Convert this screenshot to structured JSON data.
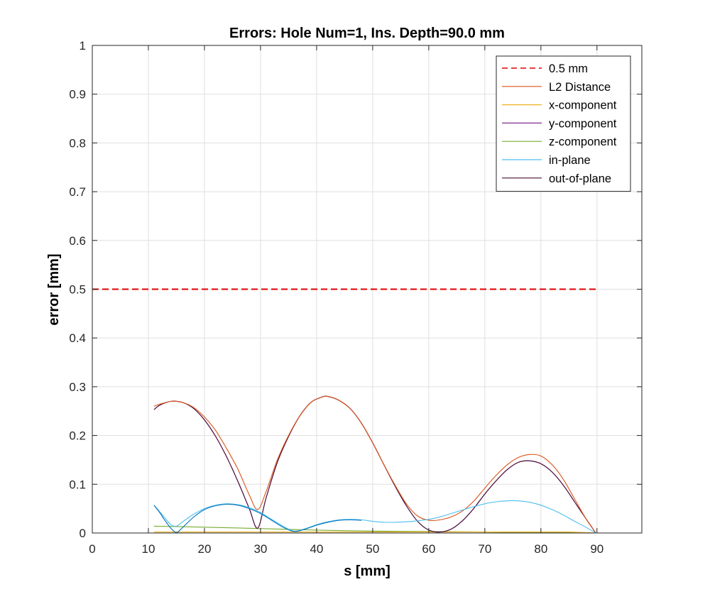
{
  "chart_data": {
    "type": "line",
    "title": "Errors: Hole Num=1, Ins. Depth=90.0 mm",
    "xlabel": "s [mm]",
    "ylabel": "error [mm]",
    "xlim": [
      0,
      98
    ],
    "ylim": [
      0,
      1
    ],
    "xticks": [
      0,
      10,
      20,
      30,
      40,
      50,
      60,
      70,
      80,
      90
    ],
    "yticks": [
      0,
      0.1,
      0.2,
      0.3,
      0.4,
      0.5,
      0.6,
      0.7,
      0.8,
      0.9,
      1
    ],
    "ytick_labels": [
      "0",
      "0.1",
      "0.2",
      "0.3",
      "0.4",
      "0.5",
      "0.6",
      "0.7",
      "0.8",
      "0.9",
      "1"
    ],
    "grid": true,
    "legend_position": "top-right",
    "series": [
      {
        "name": "0.5 mm",
        "color": "#e00000",
        "style": "dashed",
        "x": [
          0,
          90
        ],
        "y": [
          0.5,
          0.5
        ]
      },
      {
        "name": "L2 Distance",
        "color": "#d95319",
        "style": "solid",
        "x": [
          11,
          12,
          14,
          16,
          18,
          20,
          22,
          24,
          26,
          28,
          29.5,
          31,
          33,
          35,
          37,
          39,
          41,
          42,
          44,
          46,
          48,
          50,
          52,
          54,
          56,
          58,
          60,
          62,
          64,
          66,
          68,
          70,
          72,
          74,
          76,
          78,
          80,
          82,
          84,
          86,
          88,
          89.8
        ],
        "y": [
          0.26,
          0.264,
          0.27,
          0.268,
          0.258,
          0.238,
          0.21,
          0.172,
          0.13,
          0.078,
          0.048,
          0.085,
          0.15,
          0.2,
          0.24,
          0.268,
          0.279,
          0.28,
          0.272,
          0.255,
          0.225,
          0.185,
          0.14,
          0.098,
          0.06,
          0.035,
          0.026,
          0.027,
          0.033,
          0.045,
          0.065,
          0.092,
          0.118,
          0.14,
          0.155,
          0.161,
          0.158,
          0.14,
          0.11,
          0.07,
          0.03,
          0.0
        ]
      },
      {
        "name": "x-component",
        "color": "#edb120",
        "style": "solid",
        "x": [
          11,
          20,
          30,
          40,
          50,
          60,
          70,
          80,
          85,
          89.8
        ],
        "y": [
          0.002,
          0.002,
          0.002,
          0.002,
          0.002,
          0.002,
          0.002,
          0.002,
          0.002,
          0.0
        ]
      },
      {
        "name": "y-component",
        "color": "#7e2f8e",
        "style": "solid",
        "x": [
          11,
          12,
          14,
          16,
          18,
          20,
          22,
          24,
          26,
          28,
          29.5,
          31,
          33,
          35,
          37,
          39,
          41,
          42,
          44,
          46,
          48,
          50,
          52,
          54,
          56,
          58,
          60,
          62,
          64,
          66,
          68,
          70,
          72,
          74,
          76,
          78,
          80,
          82,
          84,
          86,
          88,
          89.8
        ],
        "y": [
          0.253,
          0.262,
          0.27,
          0.268,
          0.256,
          0.232,
          0.198,
          0.155,
          0.105,
          0.05,
          0.01,
          0.072,
          0.145,
          0.198,
          0.24,
          0.268,
          0.279,
          0.28,
          0.272,
          0.255,
          0.225,
          0.185,
          0.14,
          0.096,
          0.056,
          0.024,
          0.006,
          0.002,
          0.008,
          0.025,
          0.05,
          0.08,
          0.107,
          0.13,
          0.145,
          0.148,
          0.142,
          0.125,
          0.098,
          0.064,
          0.03,
          0.0
        ]
      },
      {
        "name": "z-component",
        "color": "#77ac30",
        "style": "solid",
        "x": [
          11,
          20,
          30,
          40,
          50,
          60,
          70,
          80,
          85,
          89.8
        ],
        "y": [
          0.014,
          0.012,
          0.009,
          0.006,
          0.004,
          0.003,
          0.002,
          0.001,
          0.001,
          0.0
        ]
      },
      {
        "name": "in-plane",
        "color": "#4dbeee",
        "style": "solid",
        "x": [
          11,
          12,
          13,
          14,
          15,
          16,
          18,
          20,
          22,
          24,
          26,
          28,
          30,
          32,
          34,
          36,
          38,
          40,
          42,
          44,
          46,
          48,
          50,
          52,
          54,
          56,
          58,
          60,
          62,
          64,
          66,
          68,
          70,
          72,
          74,
          76,
          78,
          80,
          82,
          84,
          86,
          88,
          89.8
        ],
        "y": [
          0.057,
          0.044,
          0.03,
          0.017,
          0.014,
          0.022,
          0.038,
          0.05,
          0.057,
          0.06,
          0.058,
          0.052,
          0.042,
          0.028,
          0.014,
          0.004,
          0.009,
          0.017,
          0.023,
          0.027,
          0.028,
          0.027,
          0.024,
          0.022,
          0.022,
          0.023,
          0.025,
          0.028,
          0.033,
          0.04,
          0.047,
          0.054,
          0.06,
          0.064,
          0.066,
          0.066,
          0.063,
          0.057,
          0.048,
          0.037,
          0.024,
          0.012,
          0.0
        ]
      },
      {
        "name": "out-of-plane",
        "color": "#4a0f36",
        "style": "solid",
        "x": [
          11,
          12,
          14,
          16,
          18,
          20,
          22,
          24,
          26,
          28,
          29.5,
          31,
          33,
          35,
          37,
          39,
          41,
          42,
          44,
          46,
          48,
          50,
          52,
          54,
          56,
          58,
          60,
          62,
          64,
          66,
          68,
          70,
          72,
          74,
          76,
          78,
          80,
          82,
          84,
          86,
          88,
          89.8
        ],
        "y": [
          0.253,
          0.262,
          0.27,
          0.268,
          0.256,
          0.232,
          0.198,
          0.155,
          0.105,
          0.05,
          0.01,
          0.072,
          0.145,
          0.198,
          0.24,
          0.268,
          0.279,
          0.28,
          0.272,
          0.255,
          0.225,
          0.185,
          0.14,
          0.096,
          0.056,
          0.024,
          0.006,
          0.002,
          0.008,
          0.025,
          0.05,
          0.08,
          0.107,
          0.13,
          0.145,
          0.148,
          0.142,
          0.125,
          0.098,
          0.064,
          0.03,
          0.0
        ]
      },
      {
        "name": "",
        "color": "#0072bd",
        "style": "solid",
        "legend": false,
        "x": [
          11,
          12,
          13,
          14,
          15,
          16,
          18,
          20,
          22,
          24,
          26,
          28,
          30,
          32,
          34,
          36,
          38,
          40,
          42,
          44,
          46,
          48
        ],
        "y": [
          0.057,
          0.042,
          0.025,
          0.01,
          0.001,
          0.01,
          0.032,
          0.048,
          0.056,
          0.059,
          0.057,
          0.05,
          0.04,
          0.026,
          0.012,
          0.003,
          0.008,
          0.016,
          0.022,
          0.026,
          0.027,
          0.026
        ]
      }
    ]
  }
}
